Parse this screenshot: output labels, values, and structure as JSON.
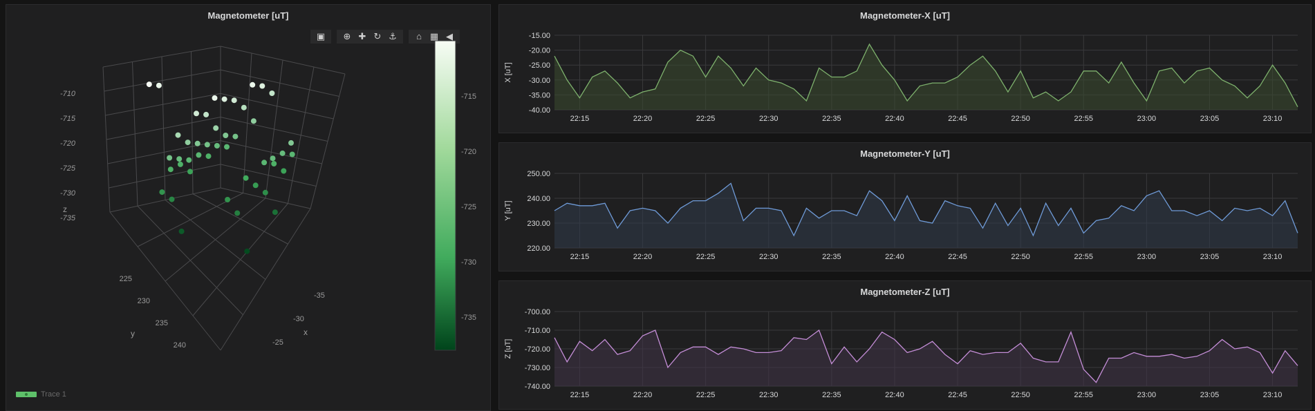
{
  "panels": {
    "scatter3d": {
      "title": "Magnetometer [uT]",
      "legend": "Trace 1"
    },
    "x": {
      "title": "Magnetometer-X [uT]"
    },
    "y": {
      "title": "Magnetometer-Y [uT]"
    },
    "z": {
      "title": "Magnetometer-Z [uT]"
    }
  },
  "toolbar": {
    "groups": [
      [
        "camera-icon"
      ],
      [
        "zoom-icon",
        "pan-icon",
        "orbit-rotation-icon",
        "turntable-rotation-icon"
      ],
      [
        "home-icon",
        "reset-camera-icon",
        "tag-icon"
      ]
    ]
  },
  "colors": {
    "x_line": "#7eb26d",
    "x_fill": "#3b4a30",
    "y_line": "#6f9bd8",
    "y_fill": "#2f3a4a",
    "z_line": "#c58ed8",
    "z_fill": "#3f3347",
    "grid": "#3a3a3c",
    "text": "#d8d9da"
  },
  "chart_data": [
    {
      "type": "scatter3d",
      "title": "Magnetometer [uT]",
      "axes": {
        "x": {
          "label": "x",
          "ticks": [
            "-35",
            "-30",
            "-25"
          ]
        },
        "y": {
          "label": "y",
          "ticks": [
            "225",
            "230",
            "235",
            "240"
          ]
        },
        "z": {
          "label": "z",
          "ticks": [
            "-710",
            "-715",
            "-720",
            "-725",
            "-730",
            "-735"
          ]
        }
      },
      "colorbar": {
        "ticks": [
          "-715",
          "-720",
          "-725",
          "-730",
          "-735"
        ],
        "range": [
          -738,
          -710
        ],
        "colorscale": "Greens"
      },
      "series": [
        {
          "name": "Trace 1",
          "points_z": [
            -710,
            -711,
            -711,
            -711,
            -712,
            -712,
            -713,
            -713,
            -714,
            -714,
            -715,
            -716,
            -717,
            -718,
            -718,
            -719,
            -719,
            -719,
            -720,
            -720,
            -720,
            -721,
            -721,
            -721,
            -721,
            -722,
            -722,
            -722,
            -722,
            -722,
            -723,
            -723,
            -723,
            -723,
            -724,
            -725,
            -725,
            -726,
            -727,
            -727,
            -728,
            -729,
            -730,
            -732,
            -735,
            -737
          ]
        }
      ]
    },
    {
      "type": "area",
      "title": "Magnetometer-X [uT]",
      "ylabel": "X [uT]",
      "ylim": [
        -40,
        -15
      ],
      "yticks": [
        "-15.00",
        "-20.00",
        "-25.00",
        "-30.00",
        "-35.00",
        "-40.00"
      ],
      "xticks": [
        "22:15",
        "22:20",
        "22:25",
        "22:30",
        "22:35",
        "22:40",
        "22:45",
        "22:50",
        "22:55",
        "23:00",
        "23:05",
        "23:10"
      ],
      "x_start_min": 22.0,
      "values": [
        -22,
        -30,
        -36,
        -29,
        -27,
        -31,
        -36,
        -34,
        -33,
        -24,
        -20,
        -22,
        -29,
        -22,
        -26,
        -32,
        -26,
        -30,
        -31,
        -33,
        -37,
        -26,
        -29,
        -29,
        -27,
        -18,
        -25,
        -30,
        -37,
        -32,
        -31,
        -31,
        -29,
        -25,
        -22,
        -27,
        -34,
        -27,
        -36,
        -34,
        -37,
        -34,
        -27,
        -27,
        -31,
        -24,
        -31,
        -37,
        -27,
        -26,
        -31,
        -27,
        -26,
        -30,
        -32,
        -36,
        -32,
        -25,
        -31,
        -39
      ]
    },
    {
      "type": "area",
      "title": "Magnetometer-Y [uT]",
      "ylabel": "Y [uT]",
      "ylim": [
        220,
        250
      ],
      "yticks": [
        "250.00",
        "240.00",
        "230.00",
        "220.00"
      ],
      "xticks": [
        "22:15",
        "22:20",
        "22:25",
        "22:30",
        "22:35",
        "22:40",
        "22:45",
        "22:50",
        "22:55",
        "23:00",
        "23:05",
        "23:10"
      ],
      "values": [
        235,
        238,
        237,
        237,
        238,
        228,
        235,
        236,
        235,
        230,
        236,
        239,
        239,
        242,
        246,
        231,
        236,
        236,
        235,
        225,
        236,
        232,
        235,
        235,
        233,
        243,
        239,
        231,
        241,
        231,
        230,
        239,
        237,
        236,
        228,
        238,
        229,
        236,
        225,
        238,
        229,
        236,
        226,
        231,
        232,
        237,
        235,
        241,
        243,
        235,
        235,
        233,
        235,
        231,
        236,
        235,
        236,
        233,
        239,
        226
      ]
    },
    {
      "type": "area",
      "title": "Magnetometer-Z [uT]",
      "ylabel": "Z [uT]",
      "ylim": [
        -740,
        -700
      ],
      "yticks": [
        "-700.00",
        "-710.00",
        "-720.00",
        "-730.00",
        "-740.00"
      ],
      "xticks": [
        "22:15",
        "22:20",
        "22:25",
        "22:30",
        "22:35",
        "22:40",
        "22:45",
        "22:50",
        "22:55",
        "23:00",
        "23:05",
        "23:10"
      ],
      "values": [
        -714,
        -727,
        -716,
        -721,
        -715,
        -723,
        -721,
        -713,
        -710,
        -730,
        -722,
        -719,
        -719,
        -723,
        -719,
        -720,
        -722,
        -722,
        -721,
        -714,
        -715,
        -710,
        -728,
        -719,
        -727,
        -720,
        -711,
        -715,
        -722,
        -720,
        -716,
        -723,
        -728,
        -721,
        -723,
        -722,
        -722,
        -717,
        -725,
        -727,
        -727,
        -711,
        -731,
        -738,
        -725,
        -725,
        -722,
        -724,
        -724,
        -723,
        -725,
        -724,
        -721,
        -715,
        -720,
        -719,
        -722,
        -733,
        -721,
        -729
      ]
    }
  ]
}
